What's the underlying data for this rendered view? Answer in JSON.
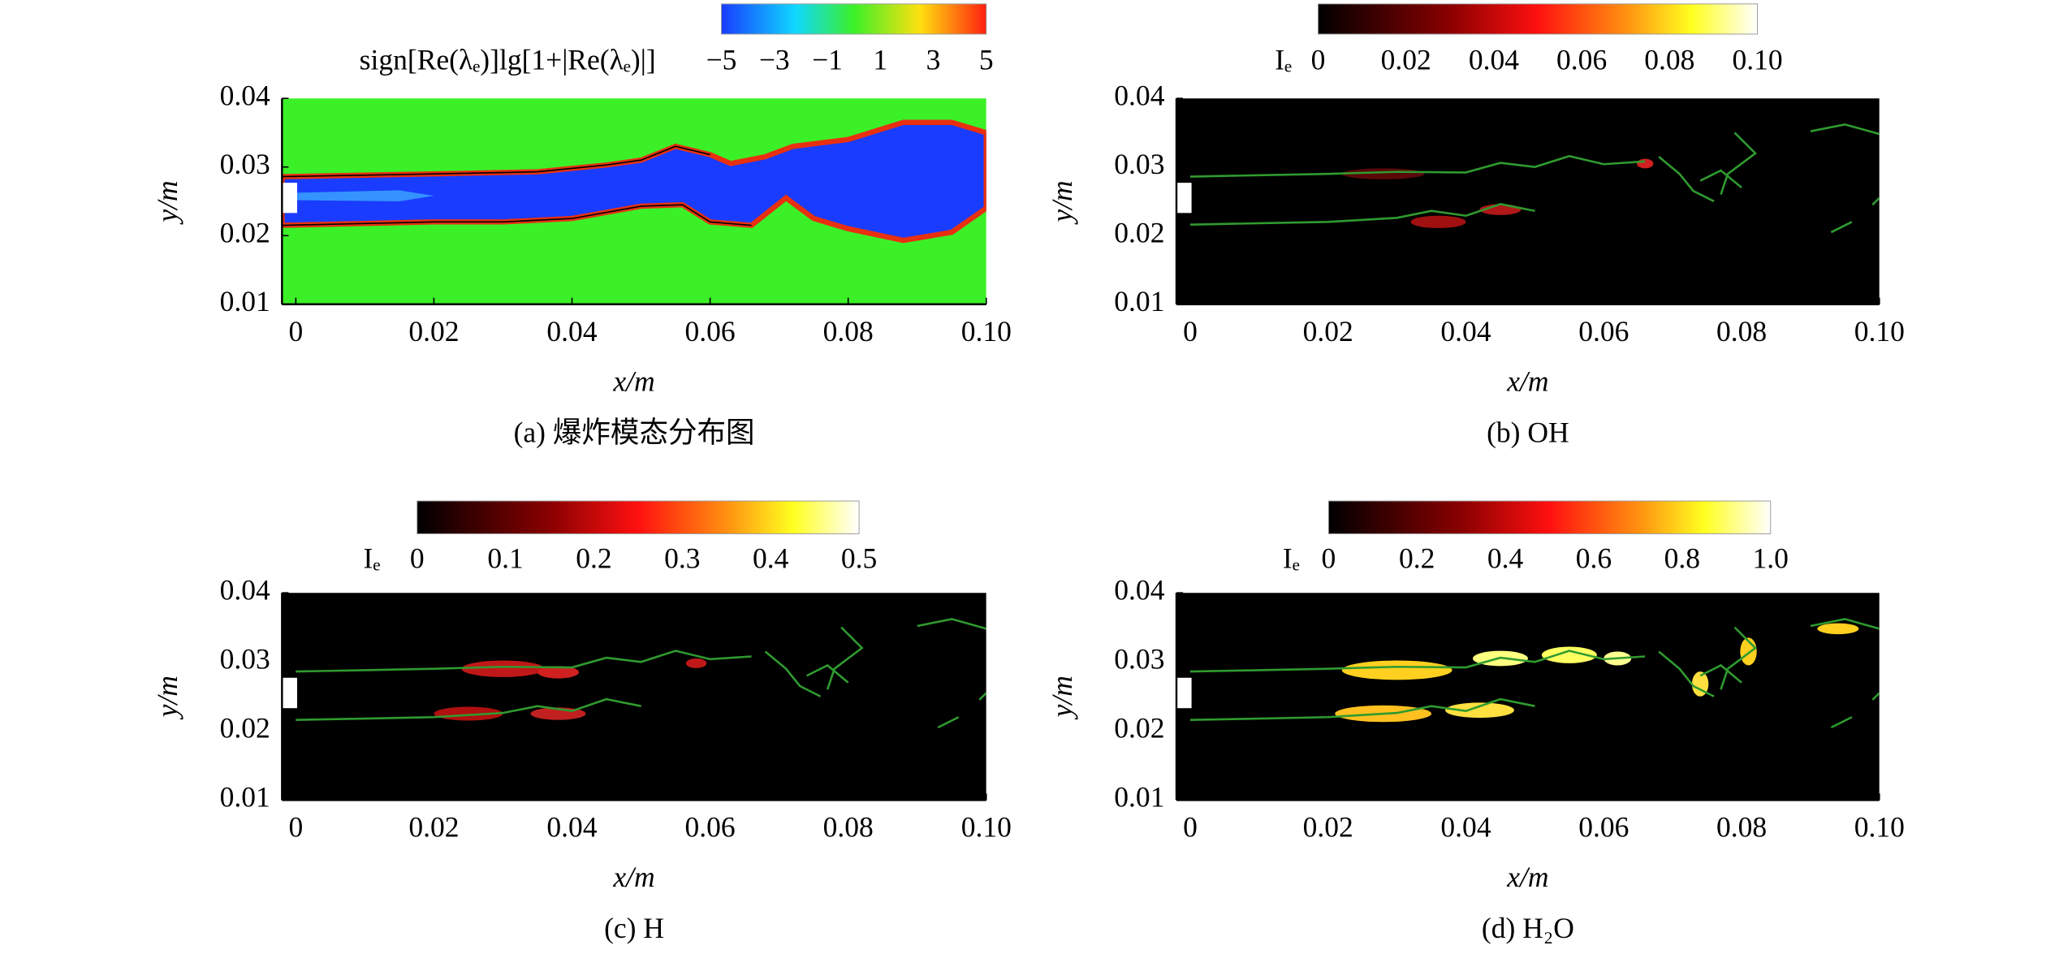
{
  "chart_data": [
    {
      "type": "contour",
      "colormap": "jet",
      "caption": "(a) 爆炸模态分布图",
      "xlabel": "x/m",
      "ylabel": "y/m",
      "xlim": [
        -0.002,
        0.1
      ],
      "ylim": [
        0.01,
        0.04
      ],
      "xticks": [
        0,
        0.02,
        0.04,
        0.06,
        0.08,
        {
          "value": 0.1,
          "label": "0.10"
        }
      ],
      "yticks": [
        0.01,
        0.02,
        0.03,
        0.04
      ],
      "colorbar": {
        "label": "sign[Re(λₑ)]lg[1+|Re(λₑ)|]",
        "lim": [
          -5,
          5
        ],
        "ticks": [
          {
            "value": -5,
            "label": "−5"
          },
          {
            "value": -3,
            "label": "−3"
          },
          {
            "value": -1,
            "label": "−1"
          },
          1,
          3,
          5
        ]
      }
    },
    {
      "type": "contour",
      "colormap": "hot",
      "caption": "(b) OH",
      "xlabel": "x/m",
      "ylabel": "y/m",
      "xlim": [
        -0.002,
        0.1
      ],
      "ylim": [
        0.01,
        0.04
      ],
      "xticks": [
        0,
        0.02,
        0.04,
        0.06,
        0.08,
        {
          "value": 0.1,
          "label": "0.10"
        }
      ],
      "yticks": [
        0.01,
        0.02,
        0.03,
        0.04
      ],
      "colorbar": {
        "label": "Iₑ",
        "lim": [
          0,
          0.1
        ],
        "ticks": [
          0,
          0.02,
          0.04,
          0.06,
          0.08,
          {
            "value": 0.1,
            "label": "0.10"
          }
        ]
      }
    },
    {
      "type": "contour",
      "colormap": "hot",
      "caption": "(c) H",
      "xlabel": "x/m",
      "ylabel": "y/m",
      "xlim": [
        -0.002,
        0.1
      ],
      "ylim": [
        0.01,
        0.04
      ],
      "xticks": [
        0,
        0.02,
        0.04,
        0.06,
        0.08,
        {
          "value": 0.1,
          "label": "0.10"
        }
      ],
      "yticks": [
        0.01,
        0.02,
        0.03,
        0.04
      ],
      "colorbar": {
        "label": "Iₑ",
        "lim": [
          0,
          0.5
        ],
        "ticks": [
          0,
          0.1,
          0.2,
          0.3,
          0.4,
          0.5
        ]
      }
    },
    {
      "type": "contour",
      "colormap": "hot",
      "caption": "(d) H₂O",
      "xlabel": "x/m",
      "ylabel": "y/m",
      "xlim": [
        -0.002,
        0.1
      ],
      "ylim": [
        0.01,
        0.04
      ],
      "xticks": [
        0,
        0.02,
        0.04,
        0.06,
        0.08,
        {
          "value": 0.1,
          "label": "0.10"
        }
      ],
      "yticks": [
        0.01,
        0.02,
        0.03,
        0.04
      ],
      "colorbar": {
        "label": "Iₑ",
        "lim": [
          0,
          1
        ],
        "ticks": [
          0,
          0.2,
          0.4,
          0.6,
          0.8,
          {
            "value": 1,
            "label": "1.0"
          }
        ]
      }
    }
  ]
}
